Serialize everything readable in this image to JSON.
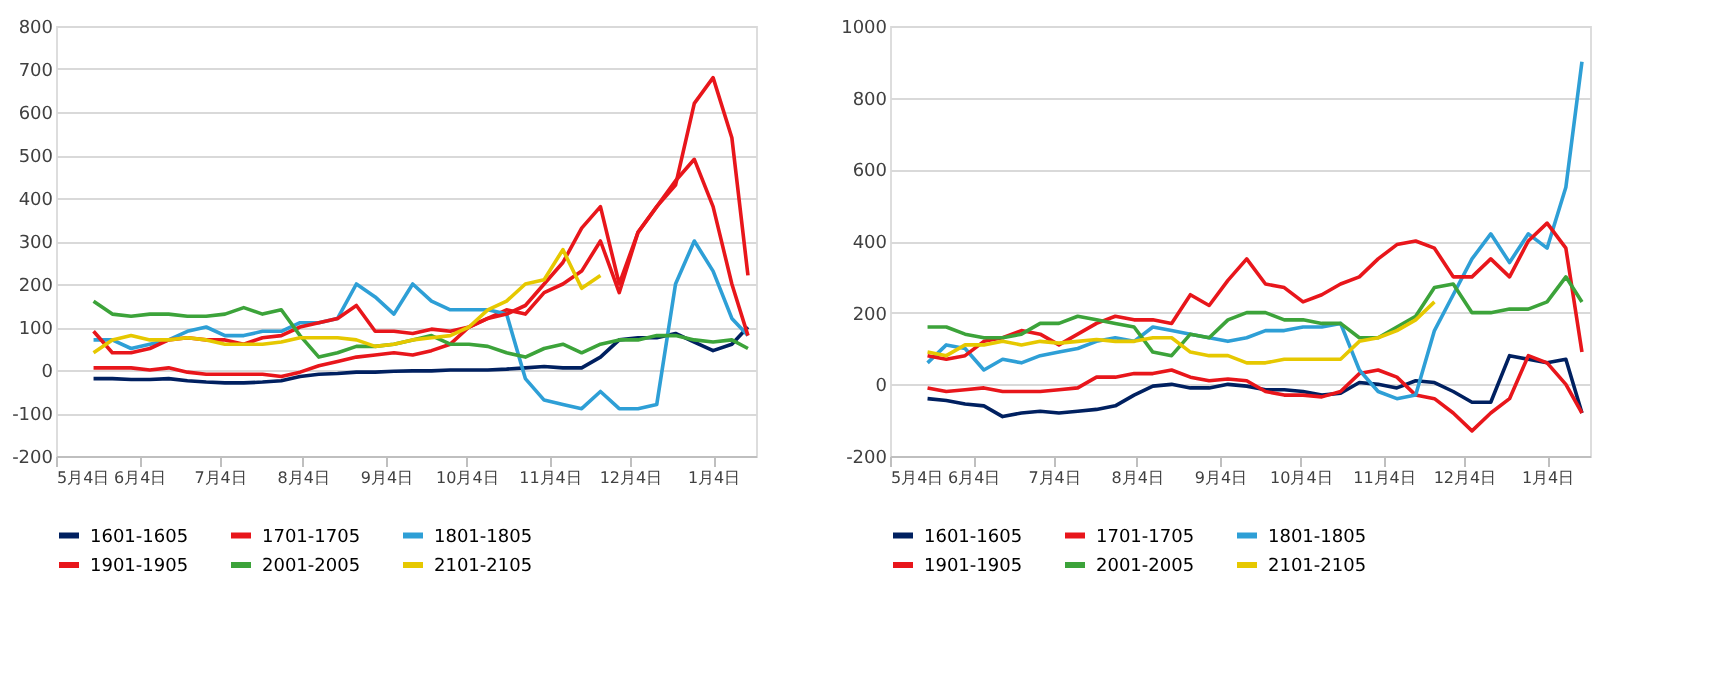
{
  "chart_data": [
    {
      "type": "line",
      "x": [
        "2000-05-18",
        "2000-05-25",
        "2000-06-01",
        "2000-06-08",
        "2000-06-15",
        "2000-06-22",
        "2000-06-29",
        "2000-07-06",
        "2000-07-13",
        "2000-07-20",
        "2000-07-27",
        "2000-08-03",
        "2000-08-10",
        "2000-08-17",
        "2000-08-24",
        "2000-08-31",
        "2000-09-07",
        "2000-09-14",
        "2000-09-21",
        "2000-09-28",
        "2000-10-05",
        "2000-10-12",
        "2000-10-19",
        "2000-10-26",
        "2000-11-02",
        "2000-11-09",
        "2000-11-16",
        "2000-11-23",
        "2000-11-30",
        "2000-12-07",
        "2000-12-14",
        "2000-12-21",
        "2000-12-28",
        "2001-01-04",
        "2001-01-11",
        "2001-01-17"
      ],
      "series": [
        {
          "name": "1601-1605",
          "color": "#002060",
          "values": [
            -20,
            -20,
            -22,
            -22,
            -20,
            -25,
            -28,
            -30,
            -30,
            -28,
            -25,
            -15,
            -10,
            -8,
            -5,
            -5,
            -3,
            -2,
            -2,
            0,
            0,
            0,
            2,
            5,
            8,
            5,
            5,
            30,
            70,
            75,
            75,
            85,
            65,
            45,
            60,
            100
          ]
        },
        {
          "name": "1701-1705",
          "color": "#e8161b",
          "values": [
            5,
            5,
            5,
            0,
            5,
            -5,
            -10,
            -10,
            -10,
            -10,
            -15,
            -5,
            10,
            20,
            30,
            35,
            40,
            35,
            45,
            60,
            100,
            120,
            140,
            130,
            180,
            200,
            230,
            300,
            180,
            320,
            380,
            430,
            620,
            680,
            540,
            220
          ]
        },
        {
          "name": "1801-1805",
          "color": "#2e9fd6",
          "values": [
            70,
            70,
            50,
            60,
            70,
            90,
            100,
            80,
            80,
            90,
            90,
            110,
            110,
            120,
            200,
            170,
            130,
            200,
            160,
            140,
            140,
            140,
            130,
            -20,
            -70,
            -80,
            -90,
            -50,
            -90,
            -90,
            -80,
            200,
            300,
            230,
            120,
            80
          ]
        },
        {
          "name": "1901-1905",
          "color": "#e8161b",
          "values": [
            90,
            40,
            40,
            50,
            70,
            75,
            70,
            70,
            60,
            75,
            80,
            100,
            110,
            120,
            150,
            90,
            90,
            85,
            95,
            90,
            100,
            120,
            130,
            150,
            200,
            250,
            330,
            380,
            200,
            320,
            380,
            440,
            490,
            380,
            200,
            80
          ]
        },
        {
          "name": "2001-2005",
          "color": "#3ca33a",
          "values": [
            160,
            130,
            125,
            130,
            130,
            125,
            125,
            130,
            145,
            130,
            140,
            80,
            30,
            40,
            55,
            55,
            60,
            70,
            80,
            60,
            60,
            55,
            40,
            30,
            50,
            60,
            40,
            60,
            70,
            70,
            80,
            80,
            70,
            65,
            70,
            50
          ]
        },
        {
          "name": "2101-2105",
          "color": "#e6c800",
          "values": [
            40,
            70,
            80,
            70,
            70,
            75,
            70,
            60,
            60,
            60,
            65,
            75,
            75,
            75,
            70,
            55,
            60,
            70,
            75,
            80,
            100,
            140,
            160,
            200,
            210,
            280,
            190,
            220,
            null,
            null,
            null,
            null,
            null,
            null,
            null,
            null
          ]
        }
      ],
      "xlim": [
        "2000-05-04",
        "2001-01-20"
      ],
      "xticks": [
        {
          "value": "2000-05-04",
          "label": "5月4日"
        },
        {
          "value": "2000-06-04",
          "label": "6月4日"
        },
        {
          "value": "2000-07-04",
          "label": "7月4日"
        },
        {
          "value": "2000-08-04",
          "label": "8月4日"
        },
        {
          "value": "2000-09-04",
          "label": "9月4日"
        },
        {
          "value": "2000-10-04",
          "label": "10月4日"
        },
        {
          "value": "2000-11-04",
          "label": "11月4日"
        },
        {
          "value": "2000-12-04",
          "label": "12月4日"
        },
        {
          "value": "2001-01-04",
          "label": "1月4日"
        }
      ],
      "ylim": [
        -200,
        800
      ],
      "yticks": [
        -200,
        -100,
        0,
        100,
        200,
        300,
        400,
        500,
        600,
        700,
        800
      ],
      "grid": "y",
      "legend": "bottom",
      "marker": "none",
      "line_style": "solid"
    },
    {
      "type": "line",
      "x": [
        "2000-05-18",
        "2000-05-25",
        "2000-06-01",
        "2000-06-08",
        "2000-06-15",
        "2000-06-22",
        "2000-06-29",
        "2000-07-06",
        "2000-07-13",
        "2000-07-20",
        "2000-07-27",
        "2000-08-03",
        "2000-08-10",
        "2000-08-17",
        "2000-08-24",
        "2000-08-31",
        "2000-09-07",
        "2000-09-14",
        "2000-09-21",
        "2000-09-28",
        "2000-10-05",
        "2000-10-12",
        "2000-10-19",
        "2000-10-26",
        "2000-11-02",
        "2000-11-09",
        "2000-11-16",
        "2000-11-23",
        "2000-11-30",
        "2000-12-07",
        "2000-12-14",
        "2000-12-21",
        "2000-12-28",
        "2001-01-04",
        "2001-01-11",
        "2001-01-17"
      ],
      "series": [
        {
          "name": "1601-1605",
          "color": "#002060",
          "values": [
            -40,
            -45,
            -55,
            -60,
            -90,
            -80,
            -75,
            -80,
            -75,
            -70,
            -60,
            -30,
            -5,
            0,
            -10,
            -10,
            0,
            -5,
            -15,
            -15,
            -20,
            -30,
            -25,
            5,
            0,
            -10,
            10,
            5,
            -20,
            -50,
            -50,
            80,
            70,
            60,
            70,
            -80
          ]
        },
        {
          "name": "1701-1705",
          "color": "#e8161b",
          "values": [
            -10,
            -20,
            -15,
            -10,
            -20,
            -20,
            -20,
            -15,
            -10,
            20,
            20,
            30,
            30,
            40,
            20,
            10,
            15,
            10,
            -20,
            -30,
            -30,
            -35,
            -20,
            30,
            40,
            20,
            -30,
            -40,
            -80,
            -130,
            -80,
            -40,
            80,
            60,
            0,
            -80
          ]
        },
        {
          "name": "1801-1805",
          "color": "#2e9fd6",
          "values": [
            60,
            110,
            100,
            40,
            70,
            60,
            80,
            90,
            100,
            120,
            130,
            120,
            160,
            150,
            140,
            130,
            120,
            130,
            150,
            150,
            160,
            160,
            170,
            40,
            -20,
            -40,
            -30,
            150,
            250,
            350,
            420,
            340,
            420,
            380,
            550,
            900
          ]
        },
        {
          "name": "1901-1905",
          "color": "#e8161b",
          "values": [
            80,
            70,
            80,
            120,
            130,
            150,
            140,
            110,
            140,
            170,
            190,
            180,
            180,
            170,
            250,
            220,
            290,
            350,
            280,
            270,
            230,
            250,
            280,
            300,
            350,
            390,
            400,
            380,
            300,
            300,
            350,
            300,
            400,
            450,
            380,
            90
          ]
        },
        {
          "name": "2001-2005",
          "color": "#3ca33a",
          "values": [
            160,
            160,
            140,
            130,
            130,
            140,
            170,
            170,
            190,
            180,
            170,
            160,
            90,
            80,
            140,
            130,
            180,
            200,
            200,
            180,
            180,
            170,
            170,
            130,
            130,
            160,
            190,
            270,
            280,
            200,
            200,
            210,
            210,
            230,
            300,
            230
          ]
        },
        {
          "name": "2101-2105",
          "color": "#e6c800",
          "values": [
            90,
            80,
            110,
            110,
            120,
            110,
            120,
            115,
            120,
            125,
            120,
            120,
            130,
            130,
            90,
            80,
            80,
            60,
            60,
            70,
            70,
            70,
            70,
            120,
            130,
            150,
            180,
            230,
            null,
            null,
            null,
            null,
            null,
            null,
            null,
            null
          ]
        }
      ],
      "xlim": [
        "2000-05-04",
        "2001-01-20"
      ],
      "xticks": [
        {
          "value": "2000-05-04",
          "label": "5月4日"
        },
        {
          "value": "2000-06-04",
          "label": "6月4日"
        },
        {
          "value": "2000-07-04",
          "label": "7月4日"
        },
        {
          "value": "2000-08-04",
          "label": "8月4日"
        },
        {
          "value": "2000-09-04",
          "label": "9月4日"
        },
        {
          "value": "2000-10-04",
          "label": "10月4日"
        },
        {
          "value": "2000-11-04",
          "label": "11月4日"
        },
        {
          "value": "2000-12-04",
          "label": "12月4日"
        },
        {
          "value": "2001-01-04",
          "label": "1月4日"
        }
      ],
      "ylim": [
        -200,
        1000
      ],
      "yticks": [
        -200,
        0,
        200,
        400,
        600,
        800,
        1000
      ],
      "grid": "y",
      "legend": "bottom",
      "marker": "none",
      "line_style": "solid"
    }
  ]
}
